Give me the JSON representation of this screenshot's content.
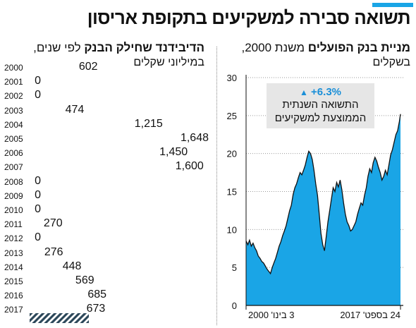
{
  "title": "תשואה סבירה למשקיעים בתקופת אריסון",
  "left_panel": {
    "title": "הדיבידנד שחילק הבנק",
    "title_suffix": "לפי שנים,",
    "subtitle": "במיליוני שקלים"
  },
  "right_panel": {
    "title": "מניית בנק הפועלים",
    "title_suffix": "משנת 2000,",
    "subtitle": "בשקלים"
  },
  "annotation": {
    "arrow": "▲",
    "percent": "+6.3%",
    "line1": "התשואה השנתית",
    "line2": "הממוצעת למשקיעים"
  },
  "colors": {
    "accent": "#1aa5e6",
    "area_fill": "#1aa5e6",
    "hatch": "#2f4a5c"
  },
  "chart_data": [
    {
      "type": "bar",
      "categories": [
        "2000",
        "2001",
        "2002",
        "2003",
        "2004",
        "2005",
        "2006",
        "2007",
        "2008",
        "2009",
        "2010",
        "2011",
        "2012",
        "2013",
        "2014",
        "2015",
        "2016",
        "2017"
      ],
      "values": [
        602,
        0,
        0,
        474,
        1215,
        1648,
        1450,
        1600,
        0,
        0,
        0,
        270,
        0,
        276,
        448,
        569,
        685,
        673
      ],
      "labels": [
        "602",
        "0",
        "0",
        "474",
        "1,215",
        "1,648",
        "1,450",
        "1,600",
        "0",
        "0",
        "0",
        "270",
        "0",
        "276",
        "448",
        "569",
        "685",
        "673"
      ]
    },
    {
      "type": "area",
      "x_labels": [
        "3 בינו' 2000",
        "24 בספט' 2017"
      ],
      "y_ticks": [
        0,
        5,
        10,
        15,
        20,
        25,
        30
      ],
      "ylim": [
        0,
        30
      ],
      "x": [
        2000.0,
        2000.2,
        2000.4,
        2000.6,
        2000.8,
        2001.0,
        2001.2,
        2001.4,
        2001.6,
        2001.8,
        2002.0,
        2002.2,
        2002.4,
        2002.6,
        2002.8,
        2003.0,
        2003.2,
        2003.4,
        2003.6,
        2003.8,
        2004.0,
        2004.2,
        2004.4,
        2004.6,
        2004.8,
        2005.0,
        2005.2,
        2005.4,
        2005.6,
        2005.8,
        2006.0,
        2006.2,
        2006.4,
        2006.6,
        2006.8,
        2007.0,
        2007.2,
        2007.4,
        2007.6,
        2007.8,
        2008.0,
        2008.2,
        2008.4,
        2008.6,
        2008.8,
        2009.0,
        2009.2,
        2009.4,
        2009.6,
        2009.8,
        2010.0,
        2010.2,
        2010.4,
        2010.6,
        2010.8,
        2011.0,
        2011.2,
        2011.4,
        2011.6,
        2011.8,
        2012.0,
        2012.2,
        2012.4,
        2012.6,
        2012.8,
        2013.0,
        2013.2,
        2013.4,
        2013.6,
        2013.8,
        2014.0,
        2014.2,
        2014.4,
        2014.6,
        2014.8,
        2015.0,
        2015.2,
        2015.4,
        2015.6,
        2015.8,
        2016.0,
        2016.2,
        2016.4,
        2016.6,
        2016.8,
        2017.0,
        2017.2,
        2017.4,
        2017.6,
        2017.73
      ],
      "y": [
        8.5,
        8.0,
        8.6,
        7.8,
        8.2,
        7.6,
        7.2,
        6.5,
        6.2,
        5.8,
        5.6,
        5.2,
        4.8,
        4.5,
        4.2,
        5.0,
        5.6,
        6.2,
        7.0,
        7.8,
        8.4,
        9.2,
        9.8,
        10.5,
        11.5,
        12.5,
        13.2,
        14.6,
        15.5,
        16.0,
        16.8,
        17.5,
        17.2,
        17.8,
        18.5,
        19.5,
        20.3,
        20.0,
        19.2,
        17.8,
        16.0,
        14.5,
        12.0,
        9.5,
        8.0,
        7.2,
        9.0,
        11.0,
        12.5,
        14.0,
        15.5,
        15.0,
        16.2,
        15.6,
        16.5,
        15.2,
        13.5,
        12.0,
        11.0,
        10.5,
        9.8,
        10.0,
        10.5,
        11.0,
        12.0,
        12.8,
        13.5,
        13.2,
        14.5,
        15.5,
        17.0,
        18.0,
        17.5,
        18.8,
        19.5,
        19.0,
        18.2,
        17.5,
        16.5,
        17.0,
        17.8,
        17.2,
        18.5,
        19.8,
        20.5,
        21.5,
        22.5,
        23.0,
        24.2,
        25.2
      ]
    }
  ]
}
